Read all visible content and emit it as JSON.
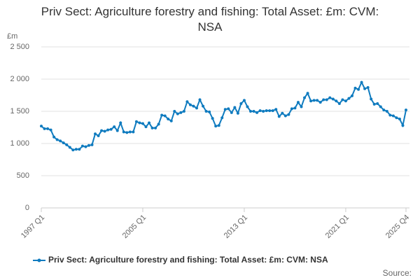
{
  "chart_data": {
    "type": "line",
    "title": "Priv Sect: Agriculture forestry and fishing: Total Asset: £m: CVM: NSA",
    "y_unit": "£m",
    "source": "Source:",
    "categories": [
      "1997 Q1",
      null,
      null,
      null,
      null,
      null,
      null,
      null,
      null,
      null,
      null,
      null,
      null,
      null,
      null,
      null,
      null,
      null,
      null,
      null,
      null,
      null,
      null,
      null,
      null,
      null,
      null,
      null,
      null,
      null,
      null,
      null,
      "2005 Q1",
      null,
      null,
      null,
      null,
      null,
      null,
      null,
      null,
      null,
      null,
      null,
      null,
      null,
      null,
      null,
      null,
      null,
      null,
      null,
      null,
      null,
      null,
      null,
      null,
      null,
      null,
      null,
      null,
      null,
      null,
      null,
      "2013 Q1",
      null,
      null,
      null,
      null,
      null,
      null,
      null,
      null,
      null,
      null,
      null,
      null,
      null,
      null,
      null,
      null,
      null,
      null,
      null,
      null,
      null,
      null,
      null,
      null,
      null,
      null,
      null,
      null,
      null,
      null,
      null,
      "2021 Q1",
      null,
      null,
      null,
      null,
      null,
      null,
      null,
      null,
      null,
      null,
      null,
      null,
      null,
      null,
      null,
      null,
      null,
      null,
      "2025 Q4"
    ],
    "series": [
      {
        "name": "Priv Sect: Agriculture forestry and fishing: Total Asset: £m: CVM: NSA",
        "color": "#0f7bbf",
        "values": [
          1270,
          1230,
          1230,
          1210,
          1100,
          1060,
          1040,
          1010,
          980,
          940,
          900,
          910,
          910,
          960,
          950,
          970,
          980,
          1150,
          1120,
          1200,
          1190,
          1210,
          1220,
          1260,
          1200,
          1320,
          1180,
          1170,
          1180,
          1180,
          1340,
          1320,
          1310,
          1260,
          1320,
          1240,
          1240,
          1300,
          1440,
          1430,
          1380,
          1350,
          1500,
          1460,
          1480,
          1500,
          1650,
          1600,
          1580,
          1550,
          1680,
          1580,
          1500,
          1490,
          1390,
          1270,
          1280,
          1400,
          1530,
          1540,
          1480,
          1560,
          1470,
          1620,
          1670,
          1570,
          1500,
          1500,
          1480,
          1510,
          1500,
          1510,
          1510,
          1510,
          1530,
          1420,
          1470,
          1430,
          1450,
          1540,
          1550,
          1640,
          1570,
          1710,
          1780,
          1660,
          1670,
          1670,
          1640,
          1680,
          1680,
          1710,
          1690,
          1660,
          1620,
          1680,
          1660,
          1700,
          1740,
          1860,
          1840,
          1950,
          1850,
          1870,
          1690,
          1610,
          1620,
          1570,
          1520,
          1500,
          1440,
          1430,
          1400,
          1380,
          1280,
          1520
        ]
      }
    ],
    "ylim": [
      0,
      2500
    ],
    "yticks": [
      0,
      500,
      {
        "value": 1000,
        "label": "1 000"
      },
      {
        "value": 1500,
        "label": "1 500"
      },
      {
        "value": 2000,
        "label": "2 000"
      },
      {
        "value": 2500,
        "label": "2 500"
      }
    ],
    "grid": true
  }
}
